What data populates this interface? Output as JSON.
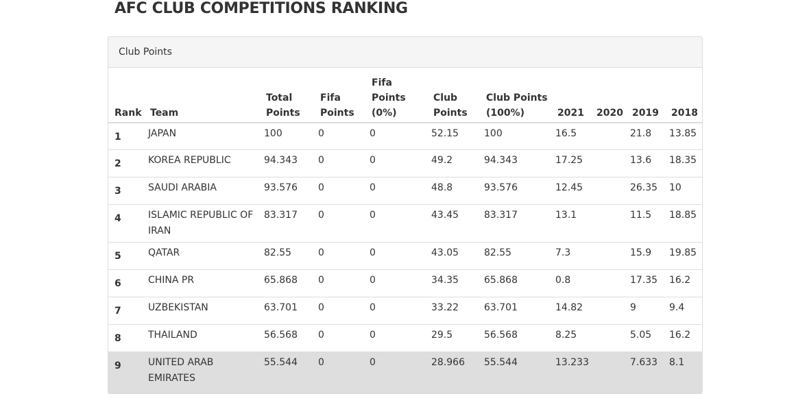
{
  "header": {
    "title": "AFC CLUB COMPETITIONS RANKING"
  },
  "panel": {
    "title": "Club Points"
  },
  "table": {
    "columns": [
      "Rank",
      "Team",
      "Total Points",
      "Fifa Points",
      "Fifa Points (0%)",
      "Club Points",
      "Club Points (100%)",
      "2021",
      "2020",
      "2019",
      "2018"
    ],
    "rows": [
      [
        1,
        "JAPAN",
        100,
        0,
        0,
        52.15,
        100,
        16.5,
        null,
        21.8,
        13.85
      ],
      [
        2,
        "KOREA REPUBLIC",
        94.343,
        0,
        0,
        49.2,
        94.343,
        17.25,
        null,
        13.6,
        18.35
      ],
      [
        3,
        "SAUDI ARABIA",
        93.576,
        0,
        0,
        48.8,
        93.576,
        12.45,
        null,
        26.35,
        10
      ],
      [
        4,
        "ISLAMIC REPUBLIC OF IRAN",
        83.317,
        0,
        0,
        43.45,
        83.317,
        13.1,
        null,
        11.5,
        18.85
      ],
      [
        5,
        "QATAR",
        82.55,
        0,
        0,
        43.05,
        82.55,
        7.3,
        null,
        15.9,
        19.85
      ],
      [
        6,
        "CHINA PR",
        65.868,
        0,
        0,
        34.35,
        65.868,
        0.8,
        null,
        17.35,
        16.2
      ],
      [
        7,
        "UZBEKISTAN",
        63.701,
        0,
        0,
        33.22,
        63.701,
        14.82,
        null,
        9,
        9.4
      ],
      [
        8,
        "THAILAND",
        56.568,
        0,
        0,
        29.5,
        56.568,
        8.25,
        null,
        5.05,
        16.2
      ],
      [
        9,
        "UNITED ARAB EMIRATES",
        55.544,
        0,
        0,
        28.966,
        55.544,
        13.233,
        null,
        7.633,
        8.1
      ]
    ]
  }
}
